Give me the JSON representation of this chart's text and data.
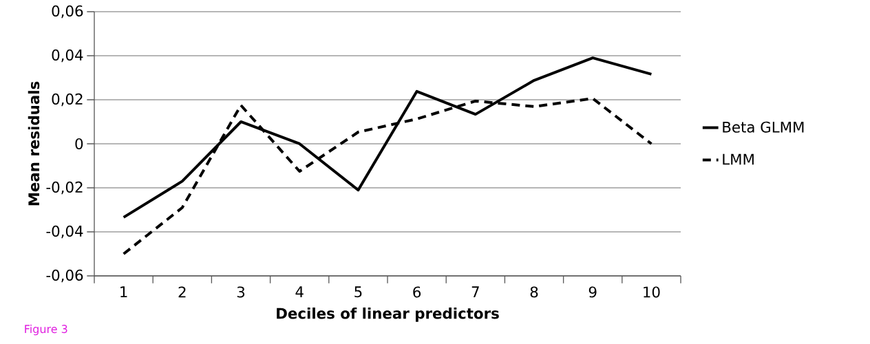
{
  "chart_data": {
    "type": "line",
    "xlabel": "Deciles of linear predictors",
    "ylabel": "Mean residuals",
    "categories": [
      "1",
      "2",
      "3",
      "4",
      "5",
      "6",
      "7",
      "8",
      "9",
      "10"
    ],
    "series": [
      {
        "name": "Beta GLMM",
        "color": "#000000",
        "line_style": "solid",
        "values": [
          -0.0334,
          -0.017,
          0.01,
          0.0,
          -0.021,
          0.0238,
          0.0134,
          0.0288,
          0.039,
          0.0316
        ]
      },
      {
        "name": "LMM",
        "color": "#000000",
        "line_style": "dashed",
        "values": [
          -0.05,
          -0.029,
          0.0175,
          -0.0125,
          0.0053,
          0.0113,
          0.0194,
          0.0169,
          0.0206,
          0.0
        ]
      }
    ],
    "ylim": [
      -0.06,
      0.06
    ],
    "yticks": [
      {
        "value": -0.06,
        "label": "-0,06"
      },
      {
        "value": -0.04,
        "label": "-0,04"
      },
      {
        "value": -0.02,
        "label": "-0,02"
      },
      0,
      {
        "value": 0.02,
        "label": "0,02"
      },
      {
        "value": 0.04,
        "label": "0,04"
      },
      {
        "value": 0.06,
        "label": "0,06"
      }
    ],
    "grid": "y",
    "legend": "right",
    "annotations": [
      "Figure 3"
    ]
  }
}
